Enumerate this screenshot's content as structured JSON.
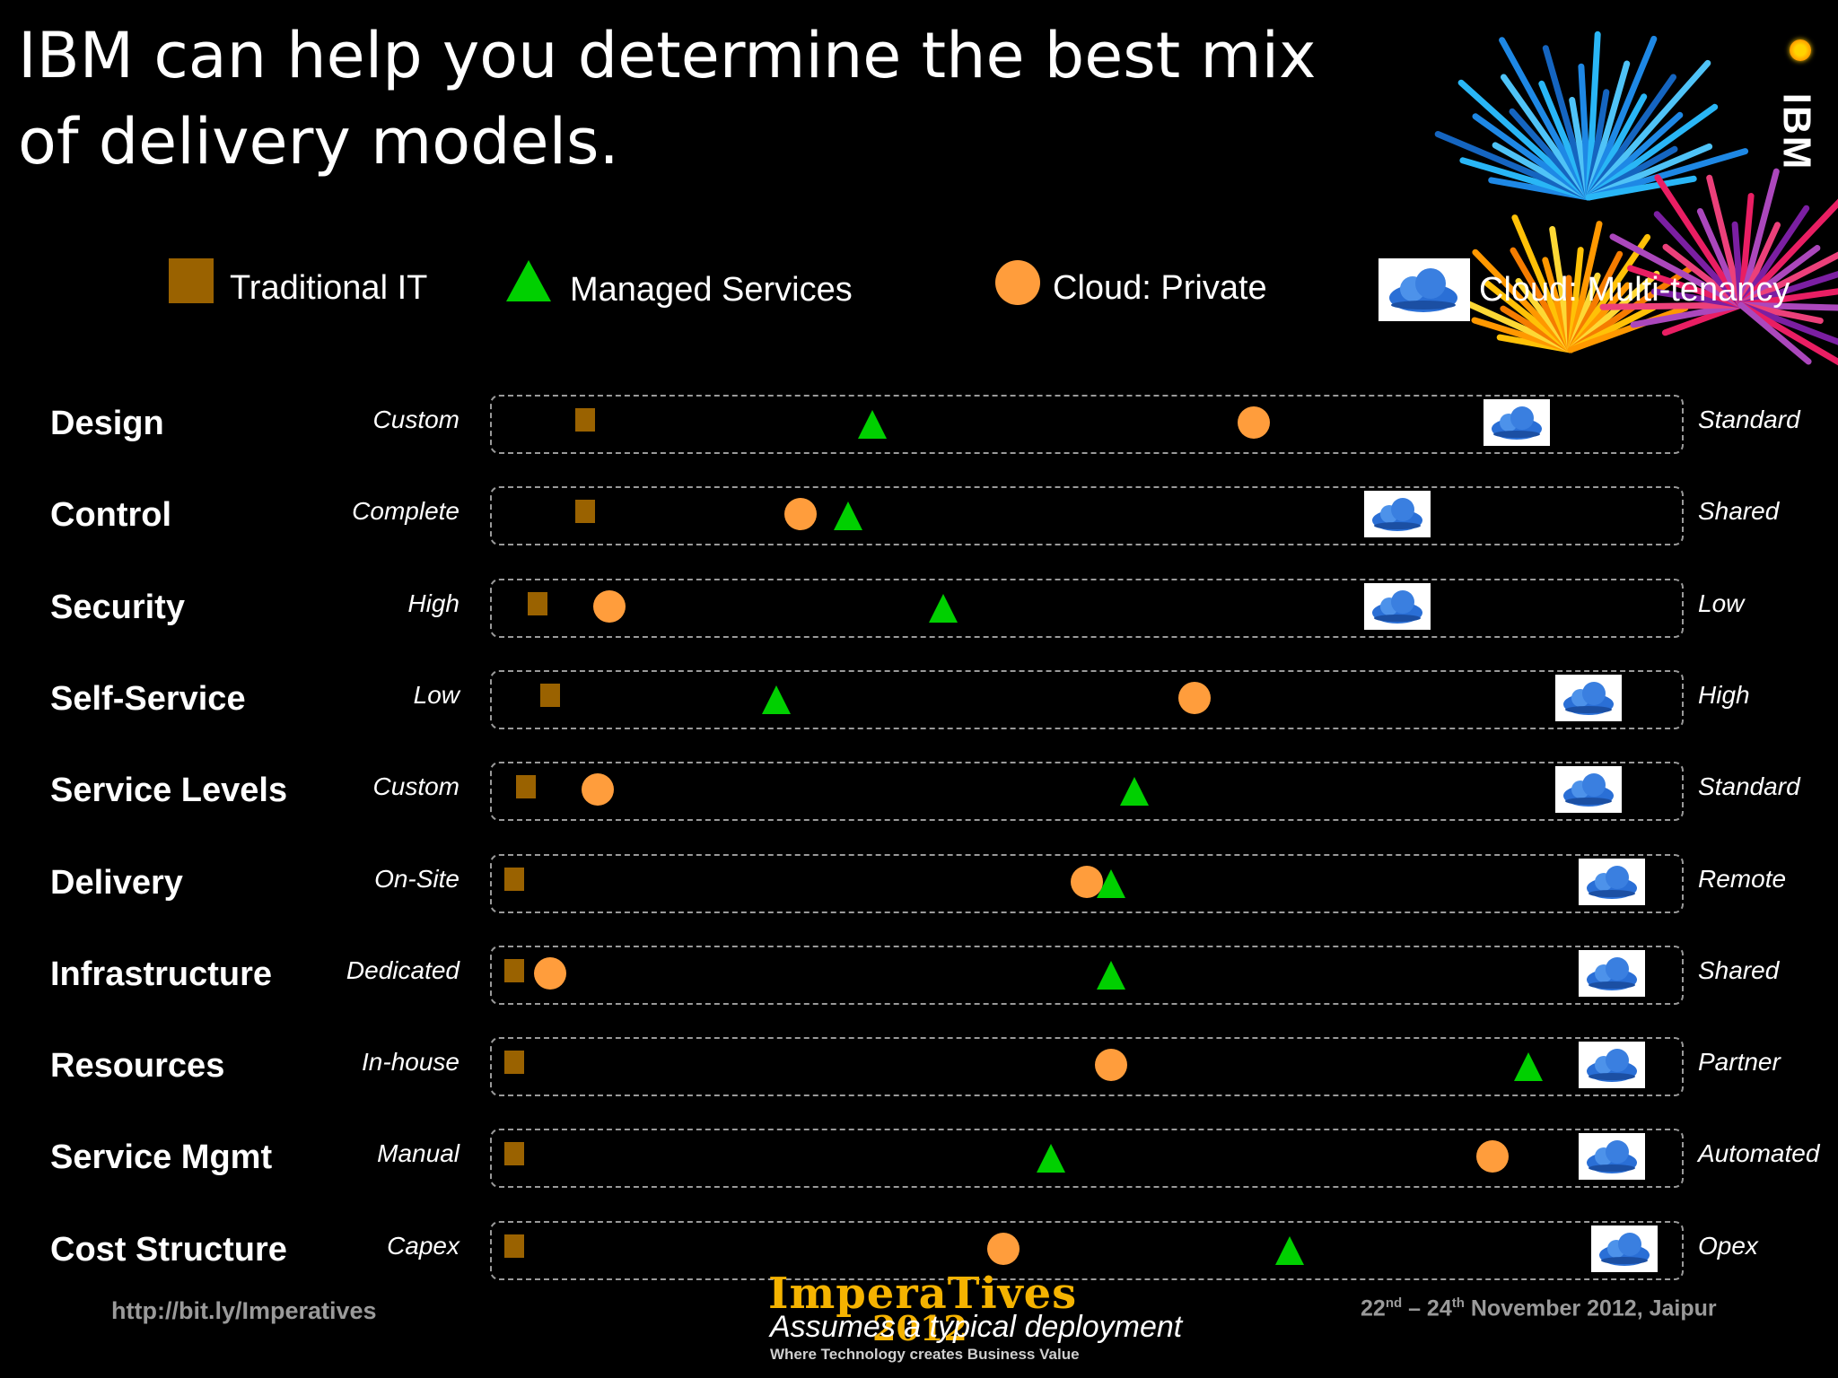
{
  "title": "IBM can help you determine the best mix of delivery models.",
  "logo_text": "IBM",
  "legend": [
    {
      "label": "Traditional IT",
      "marker": "brown-square"
    },
    {
      "label": "Managed Services",
      "marker": "green-triangle"
    },
    {
      "label": "Cloud: Private",
      "marker": "orange-circle"
    },
    {
      "label": "Cloud: Multi-tenancy",
      "marker": "cloud-icon"
    }
  ],
  "colors": {
    "traditional": "#9a6200",
    "managed": "#00d000",
    "private": "#ff9d3c",
    "cloud": "#2a6fd6"
  },
  "rows": [
    {
      "label": "Design",
      "left": "Custom",
      "right": "Standard"
    },
    {
      "label": "Control",
      "left": "Complete",
      "right": "Shared"
    },
    {
      "label": "Security",
      "left": "High",
      "right": "Low"
    },
    {
      "label": "Self-Service",
      "left": "Low",
      "right": "High"
    },
    {
      "label": "Service Levels",
      "left": "Custom",
      "right": "Standard"
    },
    {
      "label": "Delivery",
      "left": "On-Site",
      "right": "Remote"
    },
    {
      "label": "Infrastructure",
      "left": "Dedicated",
      "right": "Shared"
    },
    {
      "label": "Resources",
      "left": "In-house",
      "right": "Partner"
    },
    {
      "label": "Service Mgmt",
      "left": "Manual",
      "right": "Automated"
    },
    {
      "label": "Cost Structure",
      "left": "Capex",
      "right": "Opex"
    }
  ],
  "scale_positions": {
    "note": "fraction along each dimension scale from left end (0) to right end (1)",
    "traditional": [
      0.08,
      0.08,
      0.04,
      0.05,
      0.03,
      0.02,
      0.02,
      0.02,
      0.02,
      0.02
    ],
    "managed": [
      0.32,
      0.3,
      0.38,
      0.24,
      0.54,
      0.52,
      0.52,
      0.87,
      0.47,
      0.67
    ],
    "private": [
      0.64,
      0.26,
      0.1,
      0.59,
      0.09,
      0.5,
      0.05,
      0.52,
      0.84,
      0.43
    ],
    "cloud": [
      0.86,
      0.76,
      0.76,
      0.92,
      0.92,
      0.94,
      0.94,
      0.94,
      0.94,
      0.95
    ]
  },
  "footer": {
    "url": "http://bit.ly/Imperatives",
    "logo": "ImperaTives",
    "year": "2012",
    "tagline": "Where Technology creates Business Value",
    "note": "Assumes a typical deployment",
    "date_d1": "22",
    "date_s1": "nd",
    "date_mid": " – 24",
    "date_s2": "th",
    "date_rest": " November 2012, Jaipur"
  }
}
